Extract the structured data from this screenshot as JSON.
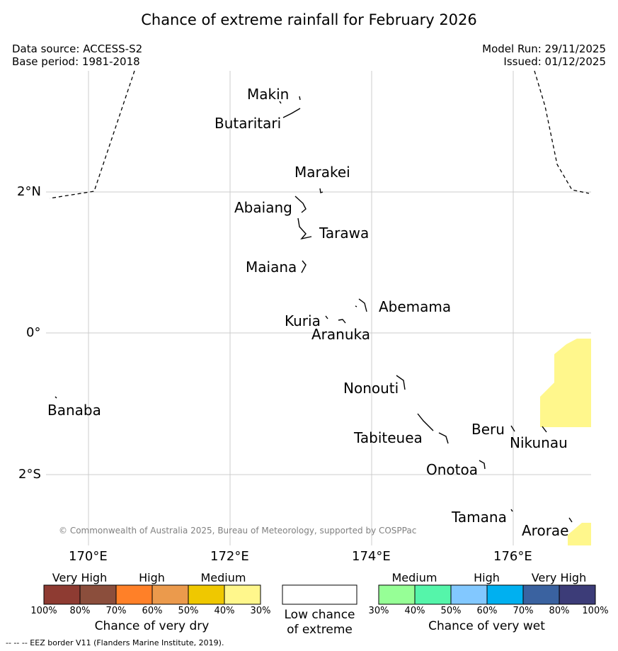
{
  "header": {
    "title": "Chance of extreme rainfall for February 2026",
    "data_source": "Data source: ACCESS-S2",
    "base_period": "Base period: 1981-2018",
    "model_run": "Model Run: 29/11/2025",
    "issued": "Issued: 01/12/2025"
  },
  "map": {
    "lat_ticks": [
      "2°N",
      "0°",
      "2°S"
    ],
    "lon_ticks": [
      "170°E",
      "172°E",
      "174°E",
      "176°E"
    ],
    "copyright": "© Commonwealth of Australia 2025, Bureau of Meteorology, supported by COSPPac",
    "places": [
      "Makin",
      "Butaritari",
      "Marakei",
      "Abaiang",
      "Tarawa",
      "Maiana",
      "Abemama",
      "Kuria",
      "Aranuka",
      "Nonouti",
      "Banaba",
      "Tabiteuea",
      "Beru",
      "Nikunau",
      "Onotoa",
      "Tamana",
      "Arorae"
    ],
    "land_color": "#000000",
    "eez_color": "#000000",
    "grid_color": "#cccccc",
    "medium_dry_color": "#fff78c"
  },
  "legend": {
    "dry": {
      "headers": [
        "Very High",
        "High",
        "Medium"
      ],
      "colors": [
        "#8e3b32",
        "#8b4e3c",
        "#ff8028",
        "#eb9a4c",
        "#efc800",
        "#fff78c"
      ],
      "ticks": [
        "100%",
        "80%",
        "70%",
        "60%",
        "50%",
        "40%",
        "30%"
      ],
      "title": "Chance of very dry"
    },
    "low": {
      "color": "#ffffff",
      "line1": "Low chance",
      "line2": "of extreme"
    },
    "wet": {
      "headers": [
        "Medium",
        "High",
        "Very High"
      ],
      "colors": [
        "#96ff96",
        "#55f5aa",
        "#82c8ff",
        "#00b0f0",
        "#3a62a0",
        "#3c3c78"
      ],
      "ticks": [
        "30%",
        "40%",
        "50%",
        "60%",
        "70%",
        "80%",
        "100%"
      ],
      "title": "Chance of very wet"
    }
  },
  "footer": "--  --  -- EEZ border V11 (Flanders Marine Institute, 2019)."
}
